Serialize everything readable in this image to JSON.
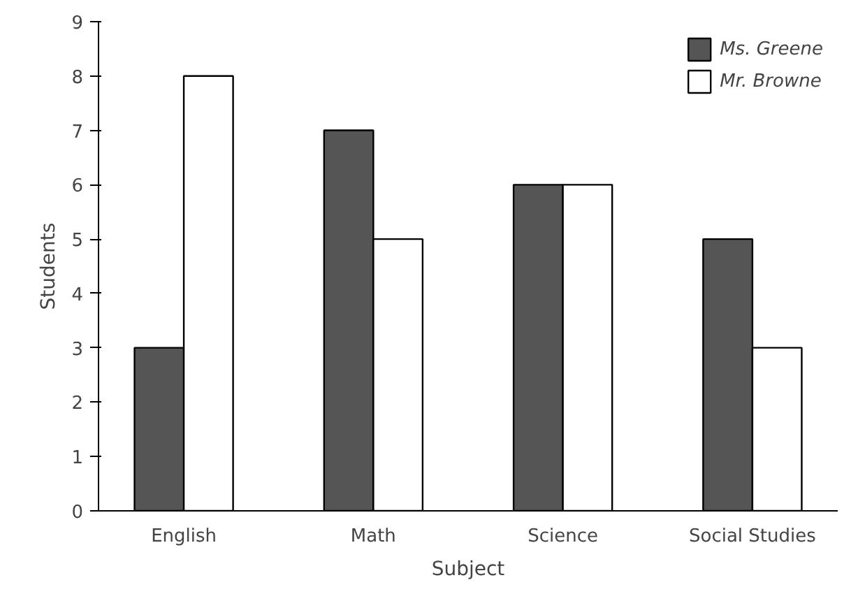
{
  "chart_data": {
    "type": "bar",
    "xlabel": "Subject",
    "ylabel": "Students",
    "categories": [
      "English",
      "Math",
      "Science",
      "Social Studies"
    ],
    "series": [
      {
        "name": "Ms. Greene",
        "color": "#555555",
        "values": [
          3,
          7,
          6,
          5
        ]
      },
      {
        "name": "Mr. Browne",
        "color": "#ffffff",
        "values": [
          8,
          5,
          6,
          3
        ]
      }
    ],
    "ylim": [
      0,
      9
    ],
    "yticks": [
      0,
      1,
      2,
      3,
      4,
      5,
      6,
      7,
      8,
      9
    ],
    "grid": false,
    "legend": "top right"
  }
}
